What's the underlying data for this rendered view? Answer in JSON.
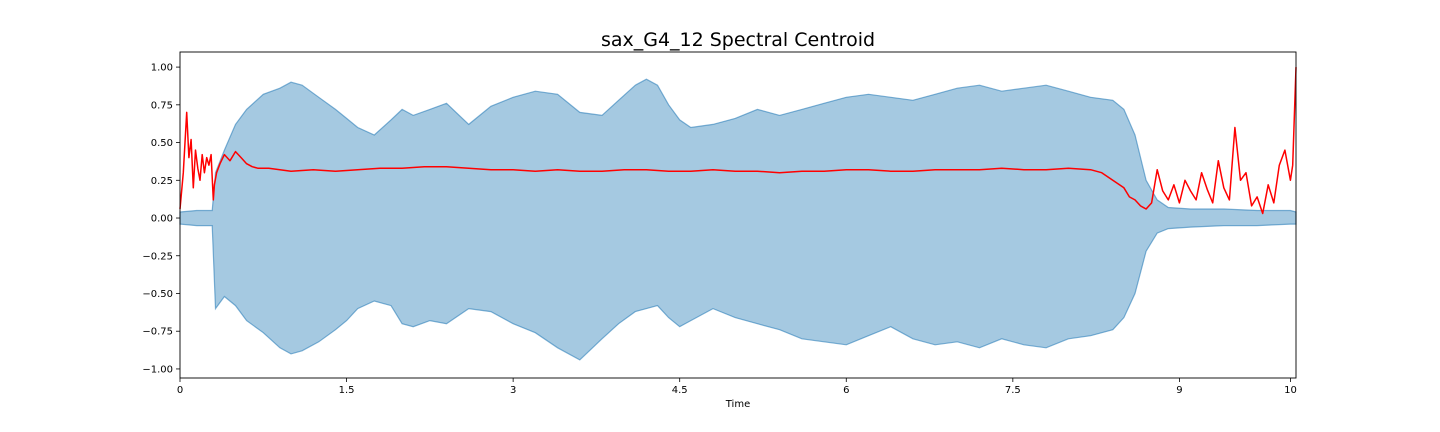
{
  "chart_data": {
    "type": "line",
    "title": "sax_G4_12 Spectral Centroid",
    "xlabel": "Time",
    "ylabel": "",
    "xlim": [
      0,
      10.05
    ],
    "ylim": [
      -1.06,
      1.1
    ],
    "xticks": [
      0,
      1.5,
      3,
      4.5,
      6,
      7.5,
      9,
      10
    ],
    "xtick_labels": [
      "0",
      "1.5",
      "3",
      "4.5",
      "6",
      "7.5",
      "9",
      "10"
    ],
    "yticks": [
      1.0,
      0.75,
      0.5,
      0.25,
      0.0,
      -0.25,
      -0.5,
      -0.75,
      -1.0
    ],
    "ytick_labels": [
      "1.00",
      "0.75",
      "0.50",
      "0.25",
      "0.00",
      "−0.25",
      "−0.50",
      "−0.75",
      "−1.00"
    ],
    "grid": false,
    "series": [
      {
        "kind": "waveform-envelope",
        "color": "#1f77b4",
        "x": [
          0.0,
          0.15,
          0.29,
          0.32,
          0.4,
          0.5,
          0.6,
          0.75,
          0.9,
          1.0,
          1.1,
          1.25,
          1.4,
          1.5,
          1.6,
          1.75,
          1.9,
          2.0,
          2.1,
          2.25,
          2.4,
          2.6,
          2.8,
          3.0,
          3.2,
          3.4,
          3.6,
          3.8,
          3.95,
          4.1,
          4.2,
          4.3,
          4.4,
          4.5,
          4.6,
          4.8,
          5.0,
          5.2,
          5.4,
          5.6,
          5.8,
          6.0,
          6.2,
          6.4,
          6.6,
          6.8,
          7.0,
          7.2,
          7.4,
          7.6,
          7.8,
          8.0,
          8.2,
          8.4,
          8.5,
          8.6,
          8.7,
          8.8,
          8.9,
          9.1,
          9.4,
          9.7,
          10.0,
          10.05
        ],
        "upper": [
          0.04,
          0.05,
          0.05,
          0.3,
          0.45,
          0.62,
          0.72,
          0.82,
          0.86,
          0.9,
          0.88,
          0.8,
          0.72,
          0.66,
          0.6,
          0.55,
          0.65,
          0.72,
          0.68,
          0.72,
          0.76,
          0.62,
          0.74,
          0.8,
          0.84,
          0.82,
          0.7,
          0.68,
          0.78,
          0.88,
          0.92,
          0.88,
          0.75,
          0.65,
          0.6,
          0.62,
          0.66,
          0.72,
          0.68,
          0.72,
          0.76,
          0.8,
          0.82,
          0.8,
          0.78,
          0.82,
          0.86,
          0.88,
          0.84,
          0.86,
          0.88,
          0.84,
          0.8,
          0.78,
          0.72,
          0.55,
          0.25,
          0.12,
          0.07,
          0.06,
          0.06,
          0.05,
          0.05,
          0.04
        ],
        "lower": [
          -0.04,
          -0.05,
          -0.05,
          -0.6,
          -0.52,
          -0.58,
          -0.68,
          -0.76,
          -0.86,
          -0.9,
          -0.88,
          -0.82,
          -0.74,
          -0.68,
          -0.6,
          -0.55,
          -0.58,
          -0.7,
          -0.72,
          -0.68,
          -0.7,
          -0.6,
          -0.62,
          -0.7,
          -0.76,
          -0.86,
          -0.94,
          -0.8,
          -0.7,
          -0.62,
          -0.6,
          -0.58,
          -0.66,
          -0.72,
          -0.68,
          -0.6,
          -0.66,
          -0.7,
          -0.74,
          -0.8,
          -0.82,
          -0.84,
          -0.78,
          -0.72,
          -0.8,
          -0.84,
          -0.82,
          -0.86,
          -0.8,
          -0.84,
          -0.86,
          -0.8,
          -0.78,
          -0.74,
          -0.66,
          -0.5,
          -0.22,
          -0.1,
          -0.07,
          -0.06,
          -0.05,
          -0.05,
          -0.04,
          -0.04
        ]
      },
      {
        "kind": "line",
        "color": "#ff0000",
        "x": [
          0.0,
          0.03,
          0.06,
          0.08,
          0.1,
          0.12,
          0.14,
          0.16,
          0.18,
          0.2,
          0.22,
          0.24,
          0.26,
          0.28,
          0.3,
          0.31,
          0.33,
          0.36,
          0.4,
          0.45,
          0.5,
          0.55,
          0.6,
          0.65,
          0.7,
          0.8,
          1.0,
          1.2,
          1.4,
          1.6,
          1.8,
          2.0,
          2.2,
          2.4,
          2.6,
          2.8,
          3.0,
          3.2,
          3.4,
          3.6,
          3.8,
          4.0,
          4.2,
          4.4,
          4.6,
          4.8,
          5.0,
          5.2,
          5.4,
          5.6,
          5.8,
          6.0,
          6.2,
          6.4,
          6.6,
          6.8,
          7.0,
          7.2,
          7.4,
          7.6,
          7.8,
          8.0,
          8.2,
          8.3,
          8.4,
          8.5,
          8.55,
          8.6,
          8.65,
          8.7,
          8.75,
          8.8,
          8.85,
          8.9,
          8.95,
          9.0,
          9.05,
          9.1,
          9.15,
          9.2,
          9.25,
          9.3,
          9.35,
          9.4,
          9.45,
          9.5,
          9.55,
          9.6,
          9.65,
          9.7,
          9.75,
          9.8,
          9.85,
          9.9,
          9.95,
          10.0,
          10.02,
          10.05
        ],
        "values": [
          0.06,
          0.3,
          0.7,
          0.4,
          0.52,
          0.2,
          0.45,
          0.33,
          0.25,
          0.42,
          0.3,
          0.4,
          0.35,
          0.42,
          0.12,
          0.22,
          0.3,
          0.36,
          0.42,
          0.38,
          0.44,
          0.4,
          0.36,
          0.34,
          0.33,
          0.33,
          0.31,
          0.32,
          0.31,
          0.32,
          0.33,
          0.33,
          0.34,
          0.34,
          0.33,
          0.32,
          0.32,
          0.31,
          0.32,
          0.31,
          0.31,
          0.32,
          0.32,
          0.31,
          0.31,
          0.32,
          0.31,
          0.31,
          0.3,
          0.31,
          0.31,
          0.32,
          0.32,
          0.31,
          0.31,
          0.32,
          0.32,
          0.32,
          0.33,
          0.32,
          0.32,
          0.33,
          0.32,
          0.3,
          0.25,
          0.2,
          0.14,
          0.12,
          0.08,
          0.06,
          0.1,
          0.32,
          0.18,
          0.12,
          0.22,
          0.1,
          0.25,
          0.18,
          0.12,
          0.3,
          0.19,
          0.1,
          0.38,
          0.2,
          0.12,
          0.6,
          0.25,
          0.3,
          0.08,
          0.14,
          0.03,
          0.22,
          0.1,
          0.35,
          0.45,
          0.25,
          0.35,
          1.0
        ]
      }
    ]
  }
}
